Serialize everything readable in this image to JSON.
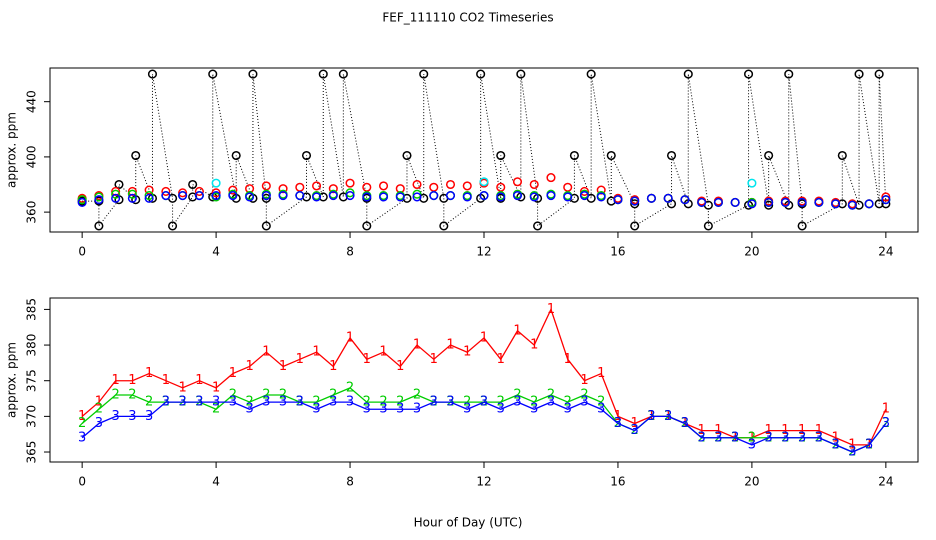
{
  "chart_data": [
    {
      "type": "scatter",
      "title": "FEF_111110  CO2 Timeseries",
      "ylabel": "approx. ppm",
      "xlim": [
        -0.96,
        24.96
      ],
      "xticks": [
        0,
        4,
        8,
        12,
        16,
        20,
        24
      ],
      "ylim": [
        345.6,
        464.4
      ],
      "yticks": [
        360,
        400,
        440
      ],
      "x": [
        0,
        0.5,
        1,
        1.5,
        2,
        2.5,
        3,
        3.5,
        4,
        4.5,
        5,
        5.5,
        6,
        6.5,
        7,
        7.5,
        8,
        8.5,
        9,
        9.5,
        10,
        10.5,
        11,
        11.5,
        12,
        12.5,
        13,
        13.5,
        14,
        14.5,
        15,
        15.5,
        16,
        16.5,
        17,
        17.5,
        18,
        18.5,
        19,
        19.5,
        20,
        20.5,
        21,
        21.5,
        22,
        22.5,
        23,
        23.5,
        24
      ],
      "series": [
        {
          "color": "#000000",
          "line": "dotted",
          "x": [
            0,
            0.5,
            0.5,
            1.1,
            1.1,
            1.6,
            1.6,
            2.1,
            2.1,
            2.7,
            2.7,
            3.3,
            3.3,
            3.9,
            3.9,
            4.6,
            4.6,
            5.1,
            5.1,
            5.5,
            5.5,
            6.7,
            6.7,
            7.2,
            7.2,
            7.8,
            7.8,
            8.5,
            8.5,
            9.7,
            9.7,
            10.2,
            10.2,
            10.8,
            10.8,
            11.9,
            11.9,
            12.5,
            12.5,
            13.1,
            13.1,
            13.6,
            13.6,
            14.7,
            14.7,
            15.2,
            15.2,
            15.8,
            15.8,
            16.5,
            16.5,
            17.6,
            17.6,
            18.1,
            18.1,
            18.7,
            18.7,
            19.9,
            19.9,
            20.5,
            20.5,
            21.1,
            21.1,
            21.5,
            21.5,
            22.7,
            22.7,
            23.2,
            23.2,
            23.8,
            23.8,
            24
          ],
          "values": [
            368,
            368,
            350,
            369,
            380,
            369,
            401,
            370,
            460,
            370,
            350,
            371,
            380,
            371,
            460,
            370,
            401,
            370,
            460,
            370,
            350,
            371,
            401,
            371,
            460,
            371,
            460,
            370,
            350,
            370,
            401,
            370,
            460,
            370,
            350,
            370,
            460,
            370,
            401,
            371,
            460,
            370,
            350,
            370,
            401,
            370,
            460,
            368,
            401,
            366,
            350,
            366,
            401,
            366,
            460,
            365,
            350,
            365,
            460,
            365,
            401,
            365,
            460,
            366,
            350,
            366,
            401,
            365,
            460,
            366,
            460,
            366
          ]
        },
        {
          "color": "#ff0000",
          "values": [
            370,
            372,
            375,
            375,
            376,
            375,
            374,
            375,
            374,
            376,
            377,
            379,
            377,
            378,
            379,
            377,
            381,
            378,
            379,
            377,
            380,
            378,
            380,
            379,
            381,
            378,
            382,
            380,
            385,
            378,
            375,
            376,
            370,
            369,
            370,
            370,
            369,
            368,
            368,
            367,
            367,
            368,
            368,
            368,
            368,
            367,
            366,
            366,
            371
          ]
        },
        {
          "color": "#00cd00",
          "values": [
            369,
            371,
            373,
            373,
            372,
            372,
            372,
            372,
            371,
            373,
            372,
            373,
            373,
            372,
            372,
            373,
            374,
            372,
            372,
            372,
            373,
            372,
            372,
            372,
            372,
            372,
            373,
            372,
            373,
            372,
            373,
            372,
            369,
            368,
            370,
            370,
            369,
            367,
            367,
            367,
            367,
            367,
            367,
            367,
            367,
            366,
            365,
            366,
            369
          ]
        },
        {
          "color": "#0000ff",
          "values": [
            367,
            369,
            370,
            370,
            370,
            372,
            372,
            372,
            372,
            372,
            371,
            372,
            372,
            372,
            371,
            372,
            372,
            371,
            371,
            371,
            371,
            372,
            372,
            371,
            372,
            371,
            372,
            371,
            372,
            371,
            372,
            371,
            369,
            368,
            370,
            370,
            369,
            367,
            367,
            367,
            366,
            367,
            367,
            367,
            367,
            366,
            365,
            366,
            369
          ]
        },
        {
          "color": "#00e5ee",
          "x": [
            4,
            12,
            20
          ],
          "values": [
            381,
            382,
            381
          ]
        }
      ]
    },
    {
      "type": "line",
      "xlabel": "Hour of Day (UTC)",
      "ylabel": "approx. ppm",
      "xlim": [
        -0.96,
        24.96
      ],
      "xticks": [
        0,
        4,
        8,
        12,
        16,
        20,
        24
      ],
      "ylim": [
        363.6,
        386.6
      ],
      "yticks": [
        365,
        370,
        375,
        380,
        385
      ],
      "x": [
        0,
        0.5,
        1,
        1.5,
        2,
        2.5,
        3,
        3.5,
        4,
        4.5,
        5,
        5.5,
        6,
        6.5,
        7,
        7.5,
        8,
        8.5,
        9,
        9.5,
        10,
        10.5,
        11,
        11.5,
        12,
        12.5,
        13,
        13.5,
        14,
        14.5,
        15,
        15.5,
        16,
        16.5,
        17,
        17.5,
        18,
        18.5,
        19,
        19.5,
        20,
        20.5,
        21,
        21.5,
        22,
        22.5,
        23,
        23.5,
        24
      ],
      "series": [
        {
          "marker": "1",
          "color": "#ff0000",
          "values": [
            370,
            372,
            375,
            375,
            376,
            375,
            374,
            375,
            374,
            376,
            377,
            379,
            377,
            378,
            379,
            377,
            381,
            378,
            379,
            377,
            380,
            378,
            380,
            379,
            381,
            378,
            382,
            380,
            385,
            378,
            375,
            376,
            370,
            369,
            370,
            370,
            369,
            368,
            368,
            367,
            367,
            368,
            368,
            368,
            368,
            367,
            366,
            366,
            371
          ]
        },
        {
          "marker": "2",
          "color": "#00cd00",
          "values": [
            369,
            371,
            373,
            373,
            372,
            372,
            372,
            372,
            371,
            373,
            372,
            373,
            373,
            372,
            372,
            373,
            374,
            372,
            372,
            372,
            373,
            372,
            372,
            372,
            372,
            372,
            373,
            372,
            373,
            372,
            373,
            372,
            369,
            368,
            370,
            370,
            369,
            367,
            367,
            367,
            367,
            367,
            367,
            367,
            367,
            366,
            365,
            366,
            369
          ]
        },
        {
          "marker": "3",
          "color": "#0000ff",
          "values": [
            367,
            369,
            370,
            370,
            370,
            372,
            372,
            372,
            372,
            372,
            371,
            372,
            372,
            372,
            371,
            372,
            372,
            371,
            371,
            371,
            371,
            372,
            372,
            371,
            372,
            371,
            372,
            371,
            372,
            371,
            372,
            371,
            369,
            368,
            370,
            370,
            369,
            367,
            367,
            367,
            366,
            367,
            367,
            367,
            367,
            366,
            365,
            366,
            369
          ]
        }
      ]
    }
  ]
}
